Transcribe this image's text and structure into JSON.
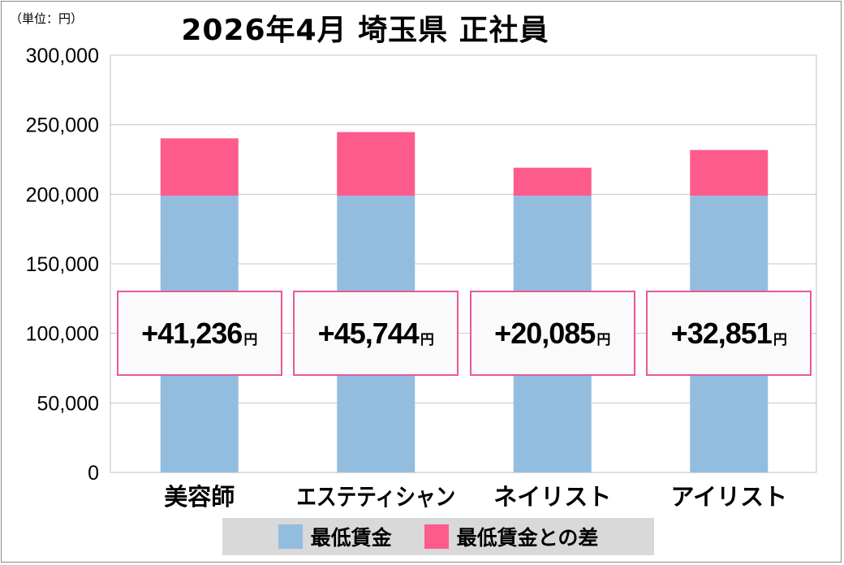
{
  "unit_label": "（単位：円）",
  "title": "2026年4月 埼玉県 正社員",
  "colors": {
    "base": "#93bddf",
    "diff": "#fd5b8c",
    "grid": "#c8c8c8",
    "box_border": "#e8589a",
    "legend_bg": "#d9d9d9"
  },
  "chart_data": {
    "type": "bar",
    "stacked": true,
    "title": "2026年4月 埼玉県 正社員",
    "categories": [
      "美容師",
      "エステティシャン",
      "ネイリスト",
      "アイリスト"
    ],
    "series": [
      {
        "name": "最低賃金",
        "values": [
          199000,
          199000,
          199000,
          199000
        ]
      },
      {
        "name": "最低賃金との差",
        "values": [
          41236,
          45744,
          20085,
          32851
        ]
      }
    ],
    "diff_labels": [
      "+41,236",
      "+45,744",
      "+20,085",
      "+32,851"
    ],
    "diff_unit": "円",
    "ylim": [
      0,
      300000
    ],
    "yticks": [
      0,
      50000,
      100000,
      150000,
      200000,
      250000,
      300000
    ],
    "ytick_labels": [
      "0",
      "50,000",
      "100,000",
      "150,000",
      "200,000",
      "250,000",
      "300,000"
    ],
    "grid": true,
    "legend_position": "bottom"
  },
  "legend": [
    {
      "label": "最低賃金",
      "color": "#93bddf"
    },
    {
      "label": "最低賃金との差",
      "color": "#fd5b8c"
    }
  ]
}
